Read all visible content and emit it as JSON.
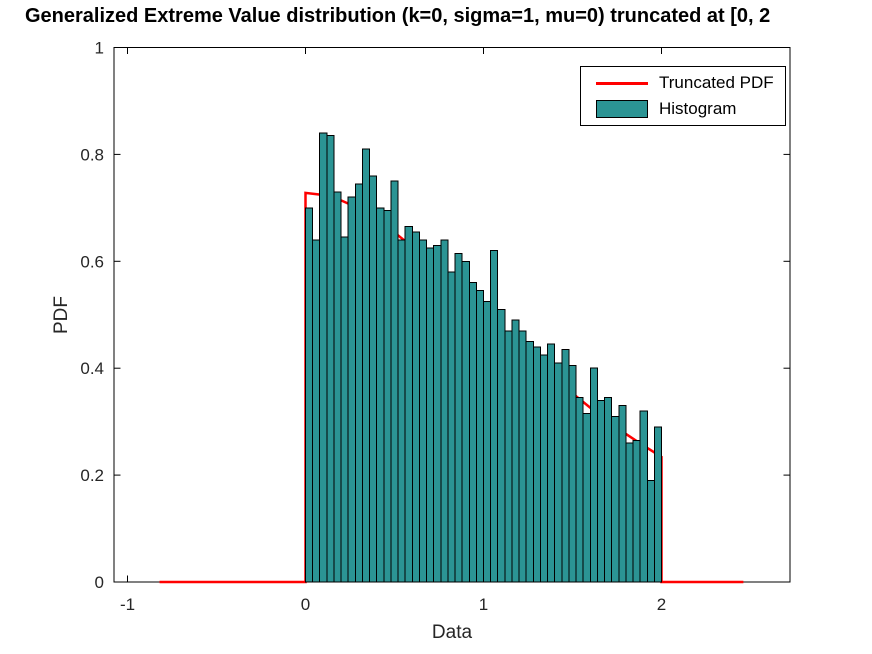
{
  "title": "Generalized Extreme Value distribution (k=0, sigma=1, mu=0) truncated at [0, 2",
  "axis_labels": {
    "x": "Data",
    "y": "PDF"
  },
  "legend": {
    "items": [
      {
        "label": "Truncated PDF",
        "swatch": "red-line"
      },
      {
        "label": "Histogram",
        "swatch": "teal-rect"
      }
    ]
  },
  "colors": {
    "pdf_line": "#ff0000",
    "hist_fill": "#2b9494",
    "hist_edge": "#000000",
    "axis": "#000000",
    "tick_text": "#262626",
    "background": "#ffffff"
  },
  "chart_data": {
    "type": "histogram+line",
    "title": "Generalized Extreme Value distribution (k=0, sigma=1, mu=0) truncated at [0, 2",
    "xlabel": "Data",
    "ylabel": "PDF",
    "xlim": [
      -1.08,
      2.72
    ],
    "ylim": [
      0,
      1
    ],
    "x_ticks": [
      -1,
      0,
      1,
      2
    ],
    "y_ticks": [
      0,
      0.2,
      0.4,
      0.6,
      0.8,
      1
    ],
    "grid": false,
    "legend_position": "top-right-inside",
    "series": [
      {
        "name": "Truncated PDF",
        "type": "line",
        "color": "#ff0000",
        "x": [
          -0.82,
          0,
          0,
          0.1,
          0.2,
          0.3,
          0.4,
          0.5,
          0.6,
          0.7,
          0.8,
          0.9,
          1.0,
          1.1,
          1.2,
          1.3,
          1.4,
          1.5,
          1.6,
          1.7,
          1.8,
          1.9,
          2.0,
          2.0,
          2.46
        ],
        "y": [
          0,
          0,
          0.728,
          0.724,
          0.714,
          0.699,
          0.678,
          0.654,
          0.627,
          0.598,
          0.567,
          0.536,
          0.504,
          0.472,
          0.441,
          0.411,
          0.381,
          0.353,
          0.326,
          0.301,
          0.277,
          0.255,
          0.234,
          0,
          0
        ]
      },
      {
        "name": "Histogram",
        "type": "histogram",
        "fill": "#2b9494",
        "edge": "#000000",
        "bin_start": 0,
        "bin_width": 0.04,
        "heights": [
          0.7,
          0.64,
          0.84,
          0.835,
          0.73,
          0.645,
          0.72,
          0.745,
          0.81,
          0.76,
          0.7,
          0.695,
          0.75,
          0.64,
          0.665,
          0.655,
          0.64,
          0.625,
          0.63,
          0.64,
          0.58,
          0.615,
          0.6,
          0.56,
          0.545,
          0.525,
          0.62,
          0.51,
          0.47,
          0.49,
          0.47,
          0.45,
          0.44,
          0.425,
          0.445,
          0.41,
          0.435,
          0.405,
          0.345,
          0.315,
          0.4,
          0.34,
          0.345,
          0.31,
          0.33,
          0.26,
          0.265,
          0.32,
          0.19,
          0.29
        ]
      }
    ]
  }
}
